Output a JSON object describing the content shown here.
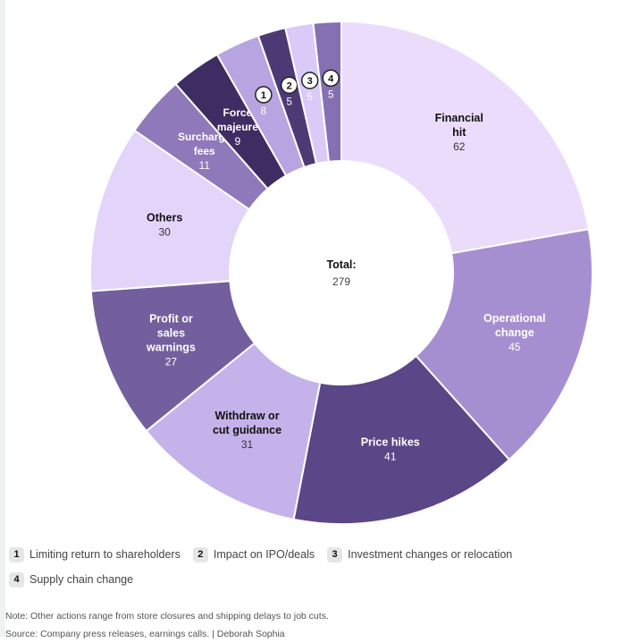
{
  "chart_data": {
    "type": "pie",
    "donut": true,
    "title": "",
    "categories": [
      "Financial hit",
      "Operational change",
      "Price hikes",
      "Withdraw or cut guidance",
      "Profit or sales warnings",
      "Others",
      "Surcharge fees",
      "Force majeure",
      "Limiting return to shareholders",
      "Impact on IPO/deals",
      "Investment changes or relocation",
      "Supply chain change"
    ],
    "values": [
      62,
      45,
      41,
      31,
      27,
      30,
      11,
      9,
      8,
      5,
      5,
      5
    ],
    "slice_labels": [
      "Financial hit",
      "Operational change",
      "Price hikes",
      "Withdraw or cut guidance",
      "Profit or sales warnings",
      "Others",
      "Surcharge fees",
      "Force majeure",
      "1",
      "2",
      "3",
      "4"
    ],
    "colors": [
      "#ebdcfc",
      "#a68fd1",
      "#5b4687",
      "#c4b3ea",
      "#735f9e",
      "#e3d4fa",
      "#9079ba",
      "#3e2d62",
      "#b8a4e0",
      "#4d3a75",
      "#d9caf8",
      "#8670b4"
    ],
    "center_label": "Total:",
    "total": 279
  },
  "legend": {
    "items": [
      {
        "badge": "1",
        "label": "Limiting return to shareholders"
      },
      {
        "badge": "2",
        "label": "Impact on IPO/deals"
      },
      {
        "badge": "3",
        "label": "Investment changes or relocation"
      },
      {
        "badge": "4",
        "label": "Supply chain change"
      }
    ]
  },
  "notes": {
    "note": "Note: Other actions range from store closures and shipping delays to job cuts.",
    "source": "Source: Company press releases, earnings calls. | Deborah Sophia"
  }
}
